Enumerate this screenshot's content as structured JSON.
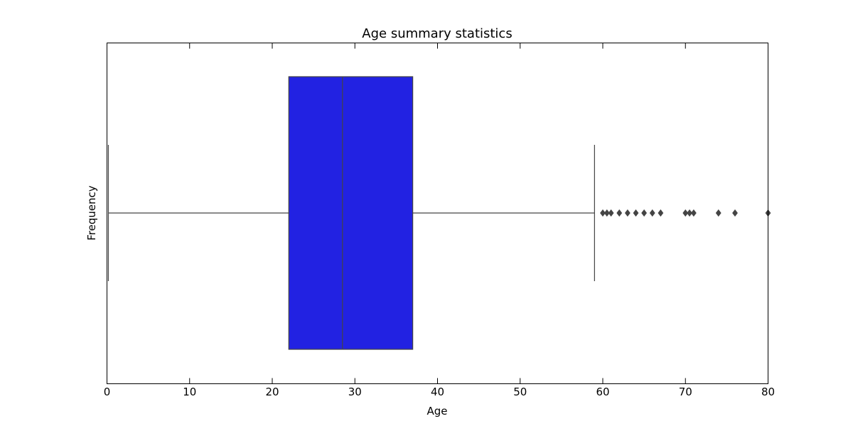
{
  "chart_data": {
    "type": "boxplot",
    "orientation": "horizontal",
    "title": "Age summary statistics",
    "xlabel": "Age",
    "ylabel": "Frequency",
    "xlim": [
      0,
      80
    ],
    "xticks": [
      0,
      10,
      20,
      30,
      40,
      50,
      60,
      70,
      80
    ],
    "grid": false,
    "box": {
      "whisker_low": 0.17,
      "q1": 22,
      "median": 28.5,
      "q3": 37,
      "whisker_high": 59,
      "color": "#2222e2",
      "line_color": "#444444"
    },
    "outliers": [
      60,
      60.5,
      61,
      62,
      63,
      64,
      65,
      66,
      67,
      70,
      70.5,
      71,
      74,
      76,
      80
    ]
  }
}
